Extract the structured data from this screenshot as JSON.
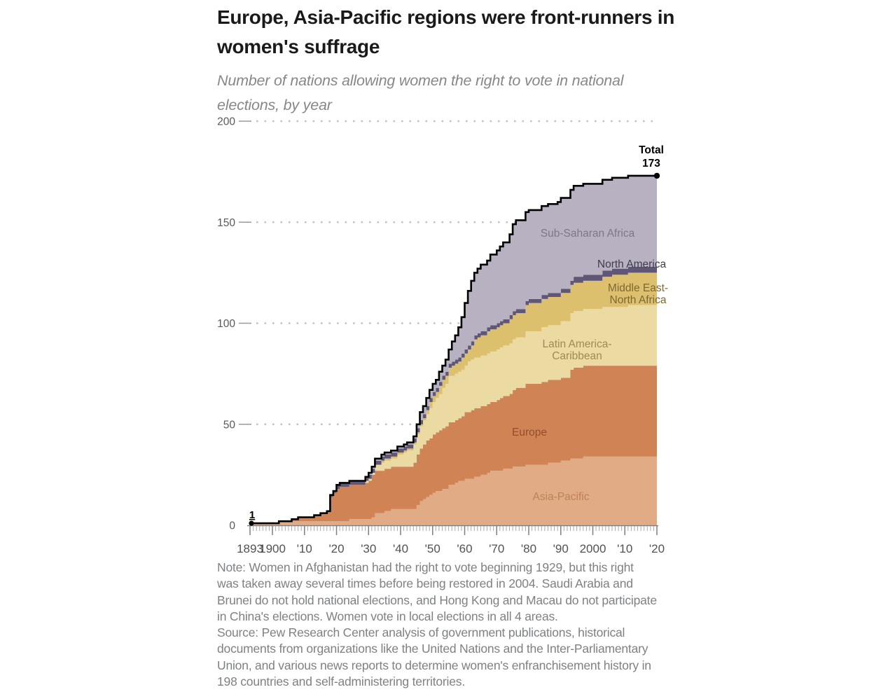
{
  "header": {
    "title_lines": [
      "Europe, Asia-Pacific regions were front-runners in",
      "women's suffrage"
    ],
    "subtitle_lines": [
      "Number of nations allowing women the right to vote in national",
      "elections, by year"
    ]
  },
  "footer": {
    "note_lines": [
      "Note: Women in Afghanistan had the right to vote beginning 1929, but this right",
      "was taken away several times before being restored in 2004. Saudi Arabia and",
      "Brunei do not hold national elections, and Hong Kong and Macau do not participate",
      "in China's elections. Women vote in local elections in all 4 areas."
    ],
    "source_lines": [
      "Source: Pew Research Center analysis of government publications, historical",
      "documents from organizations like the United Nations and the Inter-Parliamentary",
      "Union, and various news reports to determine women's enfranchisement history in",
      "198 countries and self-administering territories."
    ]
  },
  "chart_data": {
    "type": "area",
    "stacked": true,
    "step": true,
    "grid": "dotted-horizontal",
    "x_range": [
      1893,
      2020
    ],
    "ylim": [
      0,
      200
    ],
    "y_ticks": [
      0,
      50,
      100,
      150,
      200
    ],
    "x_tick_labels": [
      {
        "year": 1893,
        "label": "1893"
      },
      {
        "year": 1900,
        "label": "1900"
      },
      {
        "year": 1910,
        "label": "'10"
      },
      {
        "year": 1920,
        "label": "'20"
      },
      {
        "year": 1930,
        "label": "'30"
      },
      {
        "year": 1940,
        "label": "'40"
      },
      {
        "year": 1950,
        "label": "'50"
      },
      {
        "year": 1960,
        "label": "'60"
      },
      {
        "year": 1970,
        "label": "'70"
      },
      {
        "year": 1980,
        "label": "'80"
      },
      {
        "year": 1990,
        "label": "'90"
      },
      {
        "year": 2000,
        "label": "2000"
      },
      {
        "year": 2010,
        "label": "'10"
      },
      {
        "year": 2020,
        "label": "'20"
      }
    ],
    "years": [
      1893,
      1902,
      1906,
      1908,
      1913,
      1915,
      1917,
      1918,
      1919,
      1920,
      1921,
      1924,
      1929,
      1930,
      1931,
      1932,
      1934,
      1935,
      1937,
      1939,
      1941,
      1942,
      1944,
      1945,
      1946,
      1947,
      1948,
      1949,
      1950,
      1951,
      1952,
      1953,
      1954,
      1955,
      1956,
      1957,
      1958,
      1959,
      1960,
      1961,
      1962,
      1963,
      1964,
      1965,
      1967,
      1968,
      1970,
      1971,
      1972,
      1974,
      1975,
      1976,
      1979,
      1980,
      1984,
      1986,
      1989,
      1990,
      1993,
      1994,
      1997,
      2003,
      2006,
      2011,
      2020
    ],
    "series": [
      {
        "name": "Asia-Pacific",
        "label_lines": [
          "Asia-Pacific"
        ],
        "color": "#e1ab85",
        "label_color": "#bf8156",
        "values": [
          1,
          2,
          2,
          2,
          2,
          2,
          2,
          2,
          2,
          2,
          2,
          3,
          3,
          3,
          4,
          6,
          6,
          7,
          8,
          8,
          8,
          8,
          8,
          10,
          12,
          13,
          14,
          15,
          16,
          17,
          17,
          18,
          18,
          20,
          20,
          21,
          22,
          22,
          23,
          23,
          23,
          24,
          24,
          25,
          26,
          27,
          27,
          27,
          28,
          28,
          29,
          29,
          30,
          30,
          30,
          31,
          31,
          32,
          33,
          33,
          34,
          34,
          34,
          34,
          34
        ]
      },
      {
        "name": "Europe",
        "label_lines": [
          "Europe"
        ],
        "color": "#d08355",
        "label_color": "#924f2c",
        "values": [
          0,
          0,
          1,
          2,
          3,
          4,
          5,
          12,
          14,
          16,
          17,
          17,
          18,
          19,
          21,
          21,
          21,
          21,
          21,
          21,
          21,
          21,
          23,
          25,
          26,
          27,
          28,
          28,
          29,
          29,
          30,
          30,
          31,
          31,
          31,
          31,
          31,
          32,
          33,
          33,
          34,
          34,
          34,
          34,
          34,
          34,
          35,
          36,
          36,
          37,
          38,
          39,
          40,
          40,
          41,
          41,
          41,
          41,
          44,
          45,
          45,
          45,
          45,
          45,
          45
        ]
      },
      {
        "name": "Latin America-Caribbean",
        "label_lines": [
          "Latin America-",
          "Caribbean"
        ],
        "color": "#ebdaa1",
        "label_color": "#9d8b55",
        "values": [
          0,
          0,
          0,
          0,
          0,
          0,
          0,
          0,
          0,
          0,
          0,
          0,
          1,
          1,
          1,
          3,
          4,
          4,
          4,
          6,
          7,
          8,
          9,
          10,
          11,
          12,
          13,
          15,
          16,
          17,
          18,
          20,
          21,
          23,
          23,
          23,
          23,
          23,
          23,
          25,
          25,
          25,
          25,
          25,
          25,
          25,
          25,
          25,
          25,
          25,
          25,
          25,
          26,
          26,
          27,
          27,
          27,
          28,
          28,
          28,
          28,
          29,
          29,
          30,
          30
        ]
      },
      {
        "name": "Middle East-North Africa",
        "label_lines": [
          "Middle East-",
          "North Africa"
        ],
        "color": "#dcc06e",
        "label_color": "#7d6734",
        "values": [
          0,
          0,
          0,
          0,
          0,
          0,
          0,
          0,
          0,
          0,
          0,
          0,
          0,
          0,
          0,
          0,
          1,
          1,
          1,
          1,
          1,
          1,
          1,
          1,
          1,
          1,
          2,
          3,
          3,
          3,
          4,
          4,
          4,
          4,
          5,
          5,
          5,
          6,
          6,
          6,
          7,
          9,
          10,
          10,
          11,
          11,
          11,
          11,
          11,
          12,
          12,
          12,
          13,
          14,
          14,
          14,
          14,
          14,
          14,
          14,
          14,
          15,
          16,
          16,
          16
        ]
      },
      {
        "name": "North America",
        "label_lines": [
          "North America"
        ],
        "color": "#5f5775",
        "label_color": "#3f3c4e",
        "values": [
          0,
          0,
          0,
          0,
          0,
          0,
          0,
          1,
          1,
          2,
          2,
          2,
          2,
          2,
          2,
          2,
          2,
          2,
          2,
          2,
          2,
          2,
          2,
          2,
          2,
          2,
          2,
          2,
          2,
          2,
          2,
          2,
          2,
          2,
          2,
          2,
          2,
          2,
          2,
          2,
          2,
          2,
          2,
          2,
          2,
          2,
          2,
          2,
          2,
          2,
          2,
          2,
          2,
          2,
          2,
          2,
          2,
          2,
          2,
          3,
          3,
          3,
          3,
          3,
          3
        ]
      },
      {
        "name": "Sub-Saharan Africa",
        "label_lines": [
          "Sub-Saharan Africa"
        ],
        "color": "#b8b1c1",
        "label_color": "#7d7789",
        "values": [
          0,
          0,
          0,
          0,
          0,
          0,
          0,
          0,
          0,
          0,
          0,
          0,
          0,
          1,
          1,
          1,
          1,
          1,
          1,
          1,
          1,
          1,
          1,
          2,
          4,
          4,
          4,
          4,
          4,
          4,
          5,
          5,
          6,
          7,
          10,
          12,
          15,
          18,
          23,
          27,
          30,
          31,
          32,
          33,
          33,
          35,
          36,
          37,
          38,
          40,
          43,
          44,
          44,
          44,
          44,
          44,
          45,
          45,
          45,
          45,
          45,
          45,
          45,
          45,
          45
        ]
      }
    ],
    "total_line_color": "#000000",
    "grid_color": "#c3c3c3",
    "axis_color": "#7f7f7f",
    "tick_label_color": "#58595b",
    "annotations": {
      "start": {
        "year": 1893,
        "value": 1,
        "label": "1"
      },
      "end": {
        "year": 2020,
        "value": 173,
        "label_lines": [
          "Total",
          "173"
        ]
      }
    }
  }
}
